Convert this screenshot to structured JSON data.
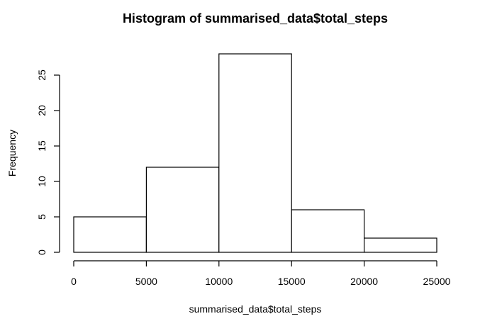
{
  "chart_data": {
    "type": "bar",
    "title": "Histogram of summarised_data$total_steps",
    "xlabel": "summarised_data$total_steps",
    "ylabel": "Frequency",
    "bins": [
      {
        "start": 0,
        "end": 5000,
        "count": 5
      },
      {
        "start": 5000,
        "end": 10000,
        "count": 12
      },
      {
        "start": 10000,
        "end": 15000,
        "count": 28
      },
      {
        "start": 15000,
        "end": 20000,
        "count": 6
      },
      {
        "start": 20000,
        "end": 25000,
        "count": 2
      }
    ],
    "x_ticks": [
      0,
      5000,
      10000,
      15000,
      20000,
      25000
    ],
    "y_ticks": [
      0,
      5,
      10,
      15,
      20,
      25
    ],
    "xlim": [
      0,
      25000
    ],
    "ylim": [
      0,
      28
    ],
    "grid": false,
    "bar_fill": "#ffffff",
    "bar_stroke": "#000000"
  }
}
